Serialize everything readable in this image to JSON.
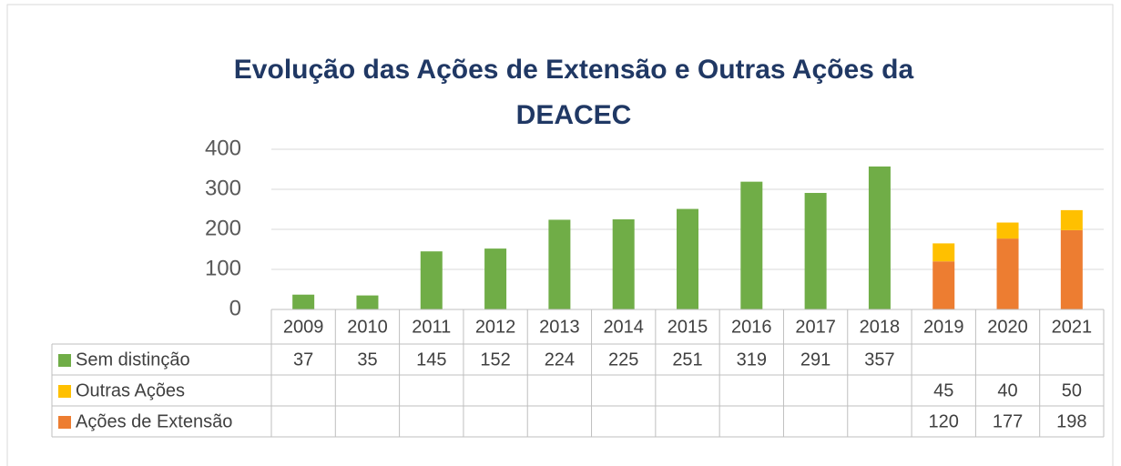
{
  "chart_data": {
    "type": "bar",
    "stacked": true,
    "title": "Evolução das Ações de Extensão e Outras Ações da DEACEC",
    "categories": [
      "2009",
      "2010",
      "2011",
      "2012",
      "2013",
      "2014",
      "2015",
      "2016",
      "2017",
      "2018",
      "2019",
      "2020",
      "2021"
    ],
    "series": [
      {
        "name": "Sem distinção",
        "color": "#70ad47",
        "values": [
          37,
          35,
          145,
          152,
          224,
          225,
          251,
          319,
          291,
          357,
          null,
          null,
          null
        ]
      },
      {
        "name": "Outras Ações",
        "color": "#ffc000",
        "values": [
          null,
          null,
          null,
          null,
          null,
          null,
          null,
          null,
          null,
          null,
          45,
          40,
          50
        ]
      },
      {
        "name": "Ações de Extensão",
        "color": "#ed7d31",
        "values": [
          null,
          null,
          null,
          null,
          null,
          null,
          null,
          null,
          null,
          null,
          120,
          177,
          198
        ]
      }
    ],
    "ylim": [
      0,
      400
    ],
    "yticks": [
      0,
      100,
      200,
      300,
      400
    ],
    "grid": true
  }
}
